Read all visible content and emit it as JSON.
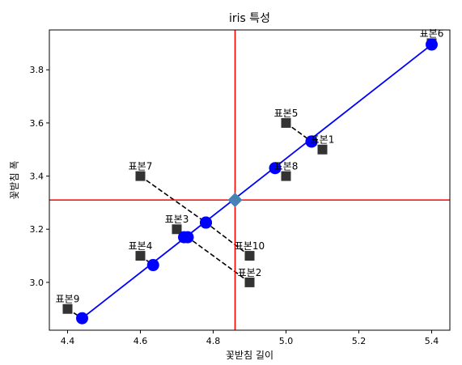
{
  "chart_data": {
    "type": "scatter",
    "title": "iris 특성",
    "xlabel": "꽃받침 길이",
    "ylabel": "꽃받침 폭",
    "xlim": [
      4.35,
      5.45
    ],
    "ylim": [
      2.82,
      3.95
    ],
    "xticks": [
      "4.4",
      "4.6",
      "4.8",
      "5.0",
      "5.2",
      "5.4"
    ],
    "yticks": [
      "3.0",
      "3.2",
      "3.4",
      "3.6",
      "3.8"
    ],
    "grid": false,
    "samples": [
      {
        "label": "표본1",
        "x": 5.1,
        "y": 3.5,
        "proj_x": 5.07,
        "proj_y": 3.53
      },
      {
        "label": "표본2",
        "x": 4.9,
        "y": 3.0,
        "proj_x": 4.73,
        "proj_y": 3.17
      },
      {
        "label": "표본3",
        "x": 4.7,
        "y": 3.2,
        "proj_x": 4.72,
        "proj_y": 3.17
      },
      {
        "label": "표본4",
        "x": 4.6,
        "y": 3.1,
        "proj_x": 4.635,
        "proj_y": 3.065
      },
      {
        "label": "표본5",
        "x": 5.0,
        "y": 3.6,
        "proj_x": 5.07,
        "proj_y": 3.53
      },
      {
        "label": "표본6",
        "x": 5.4,
        "y": 3.9,
        "proj_x": 5.4,
        "proj_y": 3.895
      },
      {
        "label": "표본7",
        "x": 4.6,
        "y": 3.4,
        "proj_x": 4.78,
        "proj_y": 3.225
      },
      {
        "label": "표본8",
        "x": 5.0,
        "y": 3.4,
        "proj_x": 4.97,
        "proj_y": 3.43
      },
      {
        "label": "표본9",
        "x": 4.4,
        "y": 2.9,
        "proj_x": 4.44,
        "proj_y": 2.865
      },
      {
        "label": "표본10",
        "x": 4.9,
        "y": 3.1,
        "proj_x": 4.78,
        "proj_y": 3.225
      }
    ],
    "mean": {
      "x": 4.86,
      "y": 3.31
    },
    "line": {
      "x": [
        4.44,
        5.4
      ],
      "y": [
        2.865,
        3.895
      ]
    },
    "colors": {
      "sample": "#333333",
      "projection": "#0000ff",
      "mean": "#4682b4",
      "crosshair": "#ff0000",
      "dashed": "#000000"
    }
  }
}
